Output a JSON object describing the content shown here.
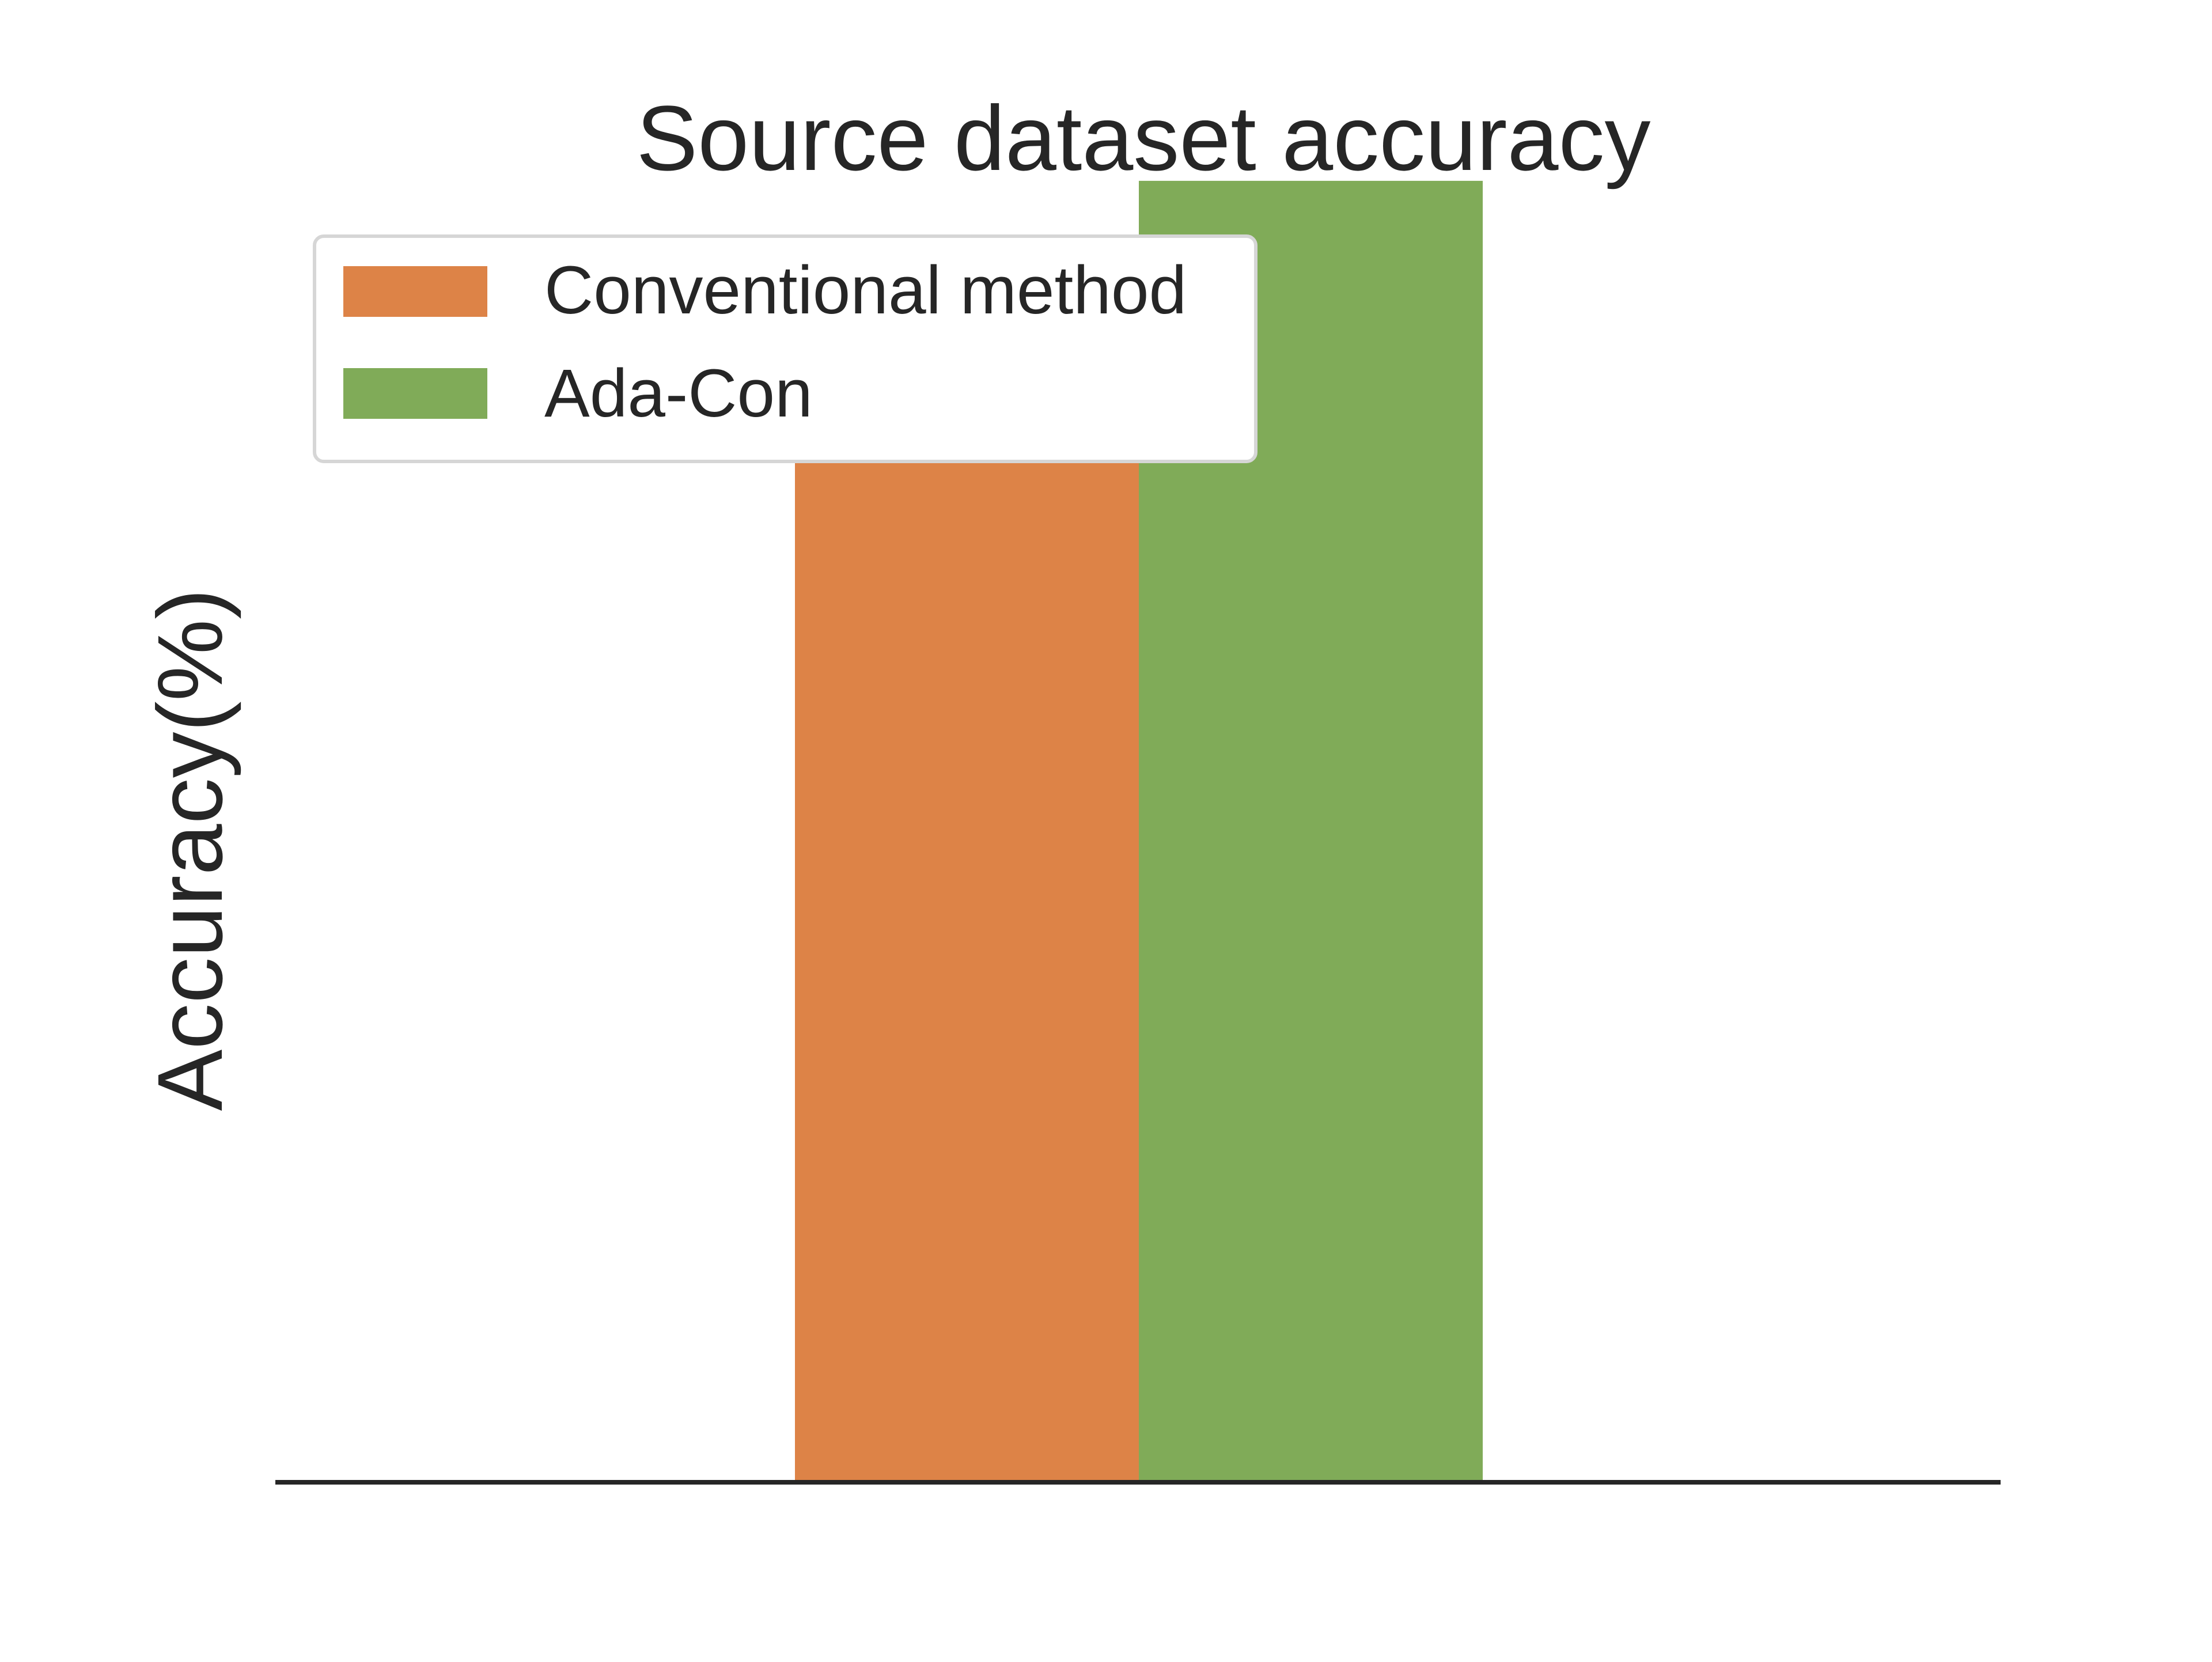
{
  "chart_data": {
    "type": "bar",
    "title": "Source dataset accuracy",
    "xlabel": "",
    "ylabel": "Accuracy(%)",
    "categories": [
      ""
    ],
    "ylim": [
      0,
      100
    ],
    "series": [
      {
        "name": "Conventional method",
        "values": [
          81.2
        ],
        "color": "#DD8347"
      },
      {
        "name": "Ada-Con",
        "values": [
          87.8
        ],
        "color": "#80AB58"
      }
    ],
    "grid": false,
    "legend": "upper-left",
    "axis_color": "#262626",
    "text_color": "#262626"
  }
}
